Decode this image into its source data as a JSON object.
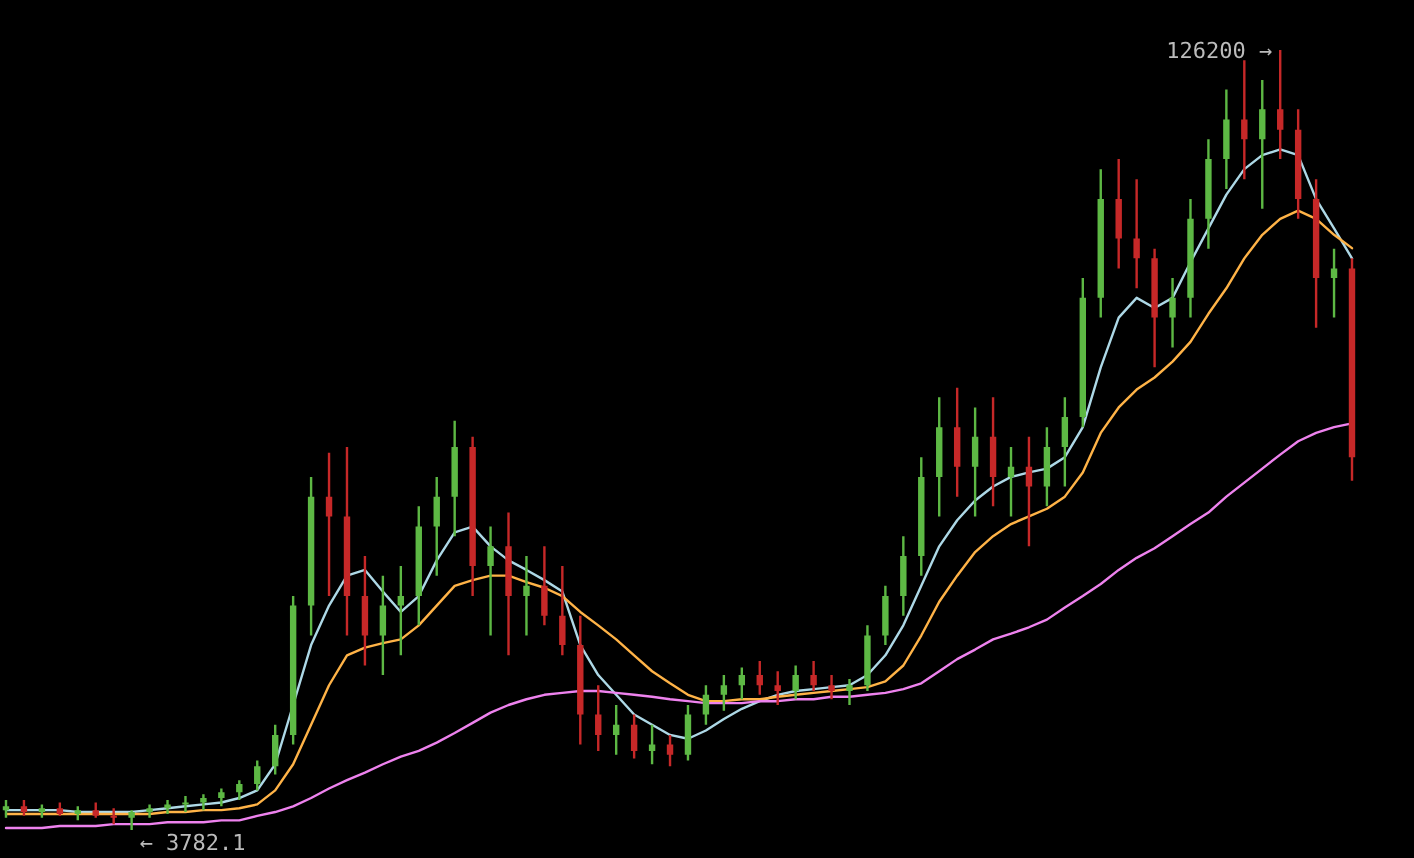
{
  "chart_data": {
    "type": "candlestick",
    "categories": [
      null,
      null,
      null,
      null,
      null,
      null,
      null,
      null,
      null,
      null,
      null,
      null,
      null,
      null,
      null,
      null,
      null,
      null,
      null,
      null,
      null,
      null,
      null,
      null,
      null,
      null,
      null,
      null,
      null,
      null,
      null,
      null,
      null,
      null,
      null,
      null,
      null,
      null,
      null,
      null,
      null,
      null,
      null,
      null,
      null,
      null,
      null,
      null,
      null,
      null,
      null,
      null,
      null,
      null,
      null,
      null,
      null,
      null,
      null,
      null,
      null,
      null,
      null,
      null,
      null,
      null,
      null,
      null,
      null,
      null,
      null,
      null,
      null,
      null,
      null,
      null
    ],
    "ohlc": [
      [
        6900,
        8500,
        5700,
        7500
      ],
      [
        7500,
        8500,
        6000,
        6600
      ],
      [
        6600,
        7800,
        5700,
        7200
      ],
      [
        7200,
        8100,
        6000,
        6300
      ],
      [
        6300,
        7500,
        5300,
        6900
      ],
      [
        6900,
        8100,
        5700,
        6000
      ],
      [
        6000,
        7200,
        4700,
        5700
      ],
      [
        5700,
        6900,
        3782.1,
        6600
      ],
      [
        6600,
        7800,
        5700,
        7200
      ],
      [
        7200,
        8500,
        6300,
        7800
      ],
      [
        7800,
        9100,
        6600,
        8100
      ],
      [
        8100,
        9400,
        6900,
        8800
      ],
      [
        8800,
        10300,
        7500,
        9700
      ],
      [
        9700,
        11600,
        8500,
        11000
      ],
      [
        11000,
        14700,
        10000,
        13800
      ],
      [
        13800,
        20300,
        12500,
        18700
      ],
      [
        18700,
        40500,
        17200,
        39000
      ],
      [
        39000,
        59200,
        34300,
        56100
      ],
      [
        56100,
        63000,
        40500,
        53000
      ],
      [
        53000,
        63900,
        34300,
        40500
      ],
      [
        40500,
        46800,
        29600,
        34300
      ],
      [
        34300,
        43700,
        28100,
        39000
      ],
      [
        39000,
        45200,
        31200,
        40500
      ],
      [
        40500,
        54600,
        35900,
        51400
      ],
      [
        51400,
        59200,
        43700,
        56100
      ],
      [
        56100,
        68000,
        49900,
        63900
      ],
      [
        63900,
        65500,
        40500,
        45200
      ],
      [
        45200,
        51400,
        34300,
        48300
      ],
      [
        48300,
        53600,
        31200,
        40500
      ],
      [
        40500,
        46800,
        34300,
        42100
      ],
      [
        42100,
        48300,
        35900,
        37400
      ],
      [
        37400,
        45200,
        31200,
        32800
      ],
      [
        32800,
        37400,
        17200,
        21900
      ],
      [
        21900,
        26500,
        16200,
        18700
      ],
      [
        18700,
        23400,
        15600,
        20300
      ],
      [
        20300,
        21900,
        15000,
        16200
      ],
      [
        16200,
        20300,
        14100,
        17200
      ],
      [
        17200,
        18700,
        13800,
        15600
      ],
      [
        15600,
        23400,
        14700,
        21900
      ],
      [
        21900,
        26500,
        20300,
        25000
      ],
      [
        25000,
        28100,
        22500,
        26500
      ],
      [
        26500,
        29300,
        24300,
        28100
      ],
      [
        28100,
        30300,
        25000,
        26500
      ],
      [
        26500,
        28700,
        23400,
        25600
      ],
      [
        25600,
        29600,
        24300,
        28100
      ],
      [
        28100,
        30300,
        25600,
        26500
      ],
      [
        26500,
        28100,
        24300,
        25600
      ],
      [
        25600,
        27500,
        23400,
        26500
      ],
      [
        26500,
        35900,
        25600,
        34300
      ],
      [
        34300,
        42100,
        32800,
        40500
      ],
      [
        40500,
        49900,
        37400,
        46800
      ],
      [
        46800,
        62300,
        43700,
        59200
      ],
      [
        59200,
        71700,
        53000,
        67000
      ],
      [
        67000,
        73200,
        56100,
        60800
      ],
      [
        60800,
        70100,
        53000,
        65500
      ],
      [
        65500,
        71700,
        54600,
        59200
      ],
      [
        59200,
        63900,
        53000,
        60800
      ],
      [
        60800,
        65500,
        48300,
        57700
      ],
      [
        57700,
        67000,
        54600,
        63900
      ],
      [
        63900,
        71700,
        57700,
        68600
      ],
      [
        68600,
        90400,
        67000,
        87300
      ],
      [
        87300,
        107500,
        84200,
        102800
      ],
      [
        102800,
        109100,
        91900,
        96600
      ],
      [
        96600,
        105900,
        88800,
        93500
      ],
      [
        93500,
        95000,
        76400,
        84200
      ],
      [
        84200,
        90400,
        79500,
        87300
      ],
      [
        87300,
        102800,
        84200,
        99700
      ],
      [
        99700,
        112200,
        95000,
        109100
      ],
      [
        109100,
        120000,
        104400,
        115300
      ],
      [
        115300,
        124600,
        105900,
        112200
      ],
      [
        112200,
        121500,
        101300,
        116900
      ],
      [
        116900,
        126200,
        109100,
        113700
      ],
      [
        113700,
        116900,
        99700,
        102800
      ],
      [
        102800,
        105900,
        82600,
        90400
      ],
      [
        90400,
        95000,
        84200,
        91900
      ],
      [
        91900,
        93500,
        58600,
        62300
      ]
    ],
    "colors": [
      "#5db844",
      "#c62828",
      "#5db844",
      "#c62828",
      "#5db844",
      "#c62828",
      "#c62828",
      "#5db844",
      "#5db844",
      "#5db844",
      "#5db844",
      "#5db844",
      "#5db844",
      "#5db844",
      "#5db844",
      "#5db844",
      "#5db844",
      "#5db844",
      "#c62828",
      "#c62828",
      "#c62828",
      "#5db844",
      "#5db844",
      "#5db844",
      "#5db844",
      "#5db844",
      "#c62828",
      "#5db844",
      "#c62828",
      "#5db844",
      "#c62828",
      "#c62828",
      "#c62828",
      "#c62828",
      "#5db844",
      "#c62828",
      "#5db844",
      "#c62828",
      "#5db844",
      "#5db844",
      "#5db844",
      "#5db844",
      "#c62828",
      "#c62828",
      "#5db844",
      "#c62828",
      "#c62828",
      "#5db844",
      "#5db844",
      "#5db844",
      "#5db844",
      "#5db844",
      "#5db844",
      "#c62828",
      "#5db844",
      "#c62828",
      "#5db844",
      "#c62828",
      "#5db844",
      "#5db844",
      "#5db844",
      "#5db844",
      "#c62828",
      "#c62828",
      "#c62828",
      "#5db844",
      "#5db844",
      "#5db844",
      "#5db844",
      "#c62828",
      "#5db844",
      "#c62828",
      "#c62828",
      "#c62828",
      "#5db844",
      "#c62828"
    ],
    "series": [
      {
        "type": "line",
        "color": "#add8e6",
        "values": [
          6900,
          6900,
          6900,
          6900,
          6600,
          6600,
          6600,
          6600,
          6900,
          7200,
          7500,
          7800,
          8100,
          8800,
          10000,
          14100,
          23400,
          32800,
          39000,
          43700,
          44600,
          41200,
          38000,
          40500,
          46100,
          50500,
          51400,
          48300,
          46100,
          44600,
          43000,
          41200,
          32800,
          28100,
          25000,
          21900,
          20300,
          18700,
          18100,
          19400,
          21200,
          22800,
          24000,
          25000,
          25600,
          25900,
          26200,
          26500,
          28100,
          31200,
          35900,
          42100,
          48300,
          52400,
          55500,
          57700,
          59200,
          59900,
          60500,
          62300,
          67000,
          76400,
          84200,
          87300,
          85700,
          87300,
          92900,
          98200,
          103500,
          107500,
          109700,
          110600,
          109700,
          102800,
          98200,
          93500
        ]
      },
      {
        "type": "line",
        "color": "#ffb347",
        "values": [
          6300,
          6300,
          6300,
          6300,
          6300,
          6300,
          6300,
          6300,
          6300,
          6600,
          6600,
          6900,
          6900,
          7200,
          7800,
          10000,
          14100,
          20300,
          26500,
          31200,
          32400,
          33100,
          33700,
          35900,
          39000,
          42100,
          43000,
          43700,
          43700,
          42700,
          41800,
          40500,
          38000,
          35900,
          33700,
          31200,
          28700,
          26800,
          25000,
          24000,
          24000,
          24300,
          24300,
          24700,
          25000,
          25300,
          25600,
          25900,
          26200,
          27100,
          29600,
          34300,
          39600,
          43700,
          47400,
          49900,
          51800,
          53000,
          54200,
          56100,
          59900,
          66100,
          70100,
          72900,
          74800,
          77300,
          80400,
          84800,
          88800,
          93500,
          97200,
          99700,
          101000,
          99700,
          97200,
          95100
        ]
      },
      {
        "type": "line",
        "color": "#ee82ee",
        "values": [
          4100,
          4100,
          4100,
          4400,
          4400,
          4400,
          4700,
          4700,
          4700,
          5000,
          5000,
          5000,
          5300,
          5300,
          6000,
          6600,
          7500,
          8800,
          10300,
          11600,
          12800,
          14100,
          15300,
          16200,
          17500,
          19000,
          20600,
          22200,
          23400,
          24300,
          25000,
          25300,
          25600,
          25600,
          25300,
          25000,
          24700,
          24300,
          24000,
          23700,
          23700,
          23700,
          24000,
          24000,
          24300,
          24300,
          24700,
          24700,
          25000,
          25300,
          25900,
          26800,
          28700,
          30600,
          32100,
          33700,
          34600,
          35600,
          36800,
          38700,
          40500,
          42400,
          44600,
          46500,
          48000,
          49900,
          51800,
          53600,
          56100,
          58300,
          60500,
          62700,
          64800,
          66100,
          67000,
          67600
        ]
      }
    ],
    "annotations": [
      "126200 →",
      "← 3782.1"
    ]
  }
}
